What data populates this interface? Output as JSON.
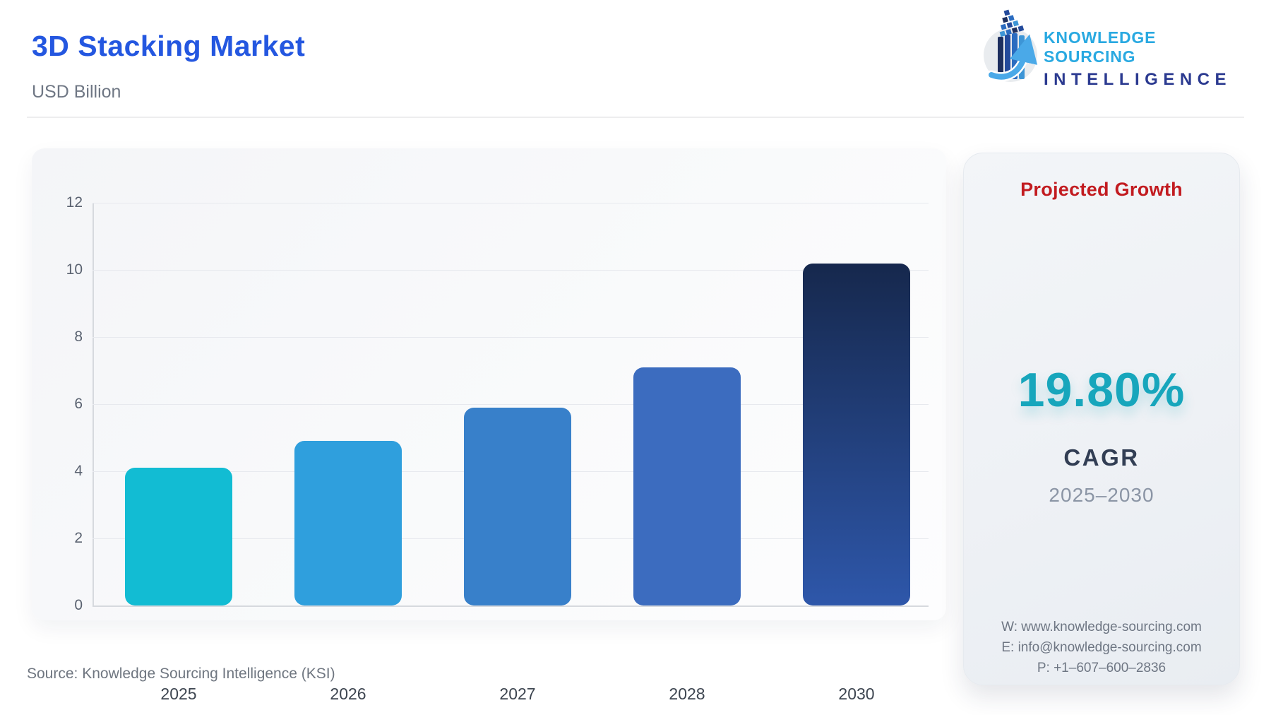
{
  "header": {
    "title": "3D Stacking Market",
    "subtitle": "USD Billion"
  },
  "logo": {
    "icon": "stacked-blocks-growth-arrow-logo",
    "line1": "KNOWLEDGE SOURCING",
    "line2": "INTELLIGENCE",
    "line1_color": "#29a9e1",
    "line2_color": "#2b3a90"
  },
  "chart_data": {
    "type": "bar",
    "title": "3D Stacking Market",
    "unit_label": "USD Billion",
    "categories": [
      "2025",
      "2026",
      "2027",
      "2028",
      "2030"
    ],
    "values": [
      4.1,
      4.9,
      5.9,
      7.1,
      10.2
    ],
    "bar_colors": [
      "#12bcd3",
      "#2f9fdd",
      "#3880ca",
      "#3c6cbf",
      "gradient:#16284d:#2e57aa"
    ],
    "ylim": [
      0,
      12
    ],
    "yticks": [
      0,
      2,
      4,
      6,
      8,
      10,
      12
    ],
    "grid": true,
    "legend": false,
    "xlabel": "",
    "ylabel": ""
  },
  "side_panel": {
    "heading": "Projected Growth",
    "heading_color": "#c21b20",
    "cagr_value": "19.80%",
    "cagr_value_color": "#17a6bc",
    "cagr_label": "CAGR",
    "period": "2025–2030",
    "contact": {
      "website": "W: www.knowledge-sourcing.com",
      "email": "E: info@knowledge-sourcing.com",
      "phone": "P: +1–607–600–2836"
    }
  },
  "footer": {
    "source": "Source: Knowledge Sourcing Intelligence (KSI)"
  }
}
